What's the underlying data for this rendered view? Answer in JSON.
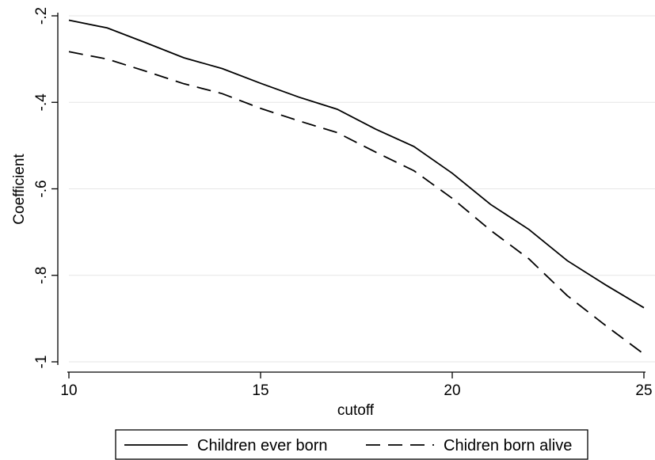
{
  "chart_data": {
    "type": "line",
    "title": "",
    "xlabel": "cutoff",
    "ylabel": "Coefficient",
    "xlim": [
      10,
      25
    ],
    "ylim": [
      -1,
      -0.2
    ],
    "xticks": [
      10,
      15,
      20,
      25
    ],
    "xtick_labels": [
      "10",
      "15",
      "20",
      "25"
    ],
    "yticks": [
      -1,
      -0.8,
      -0.6,
      -0.4,
      -0.2
    ],
    "ytick_labels": [
      "-1",
      "-.8",
      "-.6",
      "-.4",
      "-.2"
    ],
    "grid": true,
    "legend_position": "bottom",
    "x": [
      10,
      11,
      12,
      13,
      14,
      15,
      16,
      17,
      18,
      19,
      20,
      21,
      22,
      23,
      24,
      25
    ],
    "series": [
      {
        "name": "Children ever born",
        "style": "solid",
        "color": "#000000",
        "values": [
          -0.21,
          -0.228,
          -0.262,
          -0.297,
          -0.322,
          -0.356,
          -0.388,
          -0.416,
          -0.462,
          -0.502,
          -0.564,
          -0.636,
          -0.694,
          -0.766,
          -0.822,
          -0.875
        ]
      },
      {
        "name": "Chidren born alive",
        "style": "dashed",
        "color": "#000000",
        "values": [
          -0.283,
          -0.3,
          -0.328,
          -0.357,
          -0.38,
          -0.414,
          -0.443,
          -0.47,
          -0.515,
          -0.558,
          -0.622,
          -0.696,
          -0.762,
          -0.847,
          -0.916,
          -0.982
        ]
      }
    ]
  }
}
